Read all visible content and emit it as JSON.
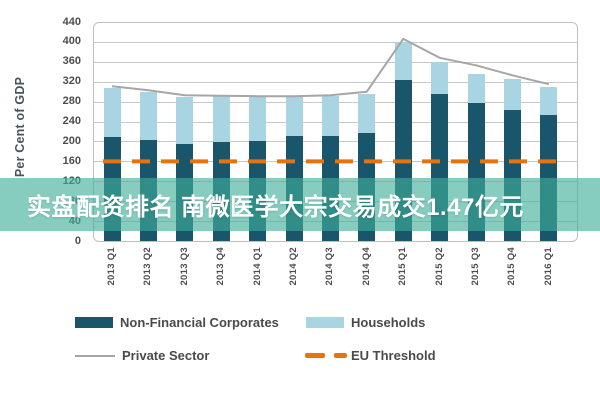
{
  "overlay": {
    "text": "实盘配资排名 南微医学大宗交易成交1.47亿元",
    "background_color": "#3fae9a",
    "text_color": "#ffffff"
  },
  "chart_data": {
    "type": "bar",
    "stacked": true,
    "ylabel": "Per Cent of GDP",
    "ylim": [
      0,
      440
    ],
    "ytick_step": 40,
    "grid": true,
    "legend_position": "bottom",
    "categories": [
      "2013 Q1",
      "2013 Q2",
      "2013 Q3",
      "2013 Q4",
      "2014 Q1",
      "2014 Q2",
      "2014 Q3",
      "2014 Q4",
      "2015 Q1",
      "2015 Q2",
      "2015 Q3",
      "2015 Q4",
      "2016 Q1"
    ],
    "series": [
      {
        "name": "Non-Financial Corporates",
        "type": "bar",
        "color": "#1a566b",
        "values": [
          208,
          203,
          194,
          199,
          201,
          211,
          211,
          217,
          324,
          295,
          277,
          263,
          253
        ]
      },
      {
        "name": "Households",
        "type": "bar",
        "color": "#a9d4e1",
        "values": [
          100,
          96,
          96,
          92,
          89,
          79,
          80,
          79,
          76,
          65,
          58,
          62,
          57
        ]
      },
      {
        "name": "Private Sector",
        "type": "line",
        "color": "#a6a6a6",
        "values": [
          311,
          303,
          293,
          292,
          291,
          291,
          293,
          300,
          406,
          368,
          353,
          333,
          315
        ]
      },
      {
        "name": "EU Threshold",
        "type": "dashed-line",
        "color": "#e8720c",
        "value": 160
      }
    ],
    "colors": {
      "gridline": "#c9c9c9",
      "frame": "#bfbfbf",
      "axis_text": "#4d4d4d"
    }
  }
}
